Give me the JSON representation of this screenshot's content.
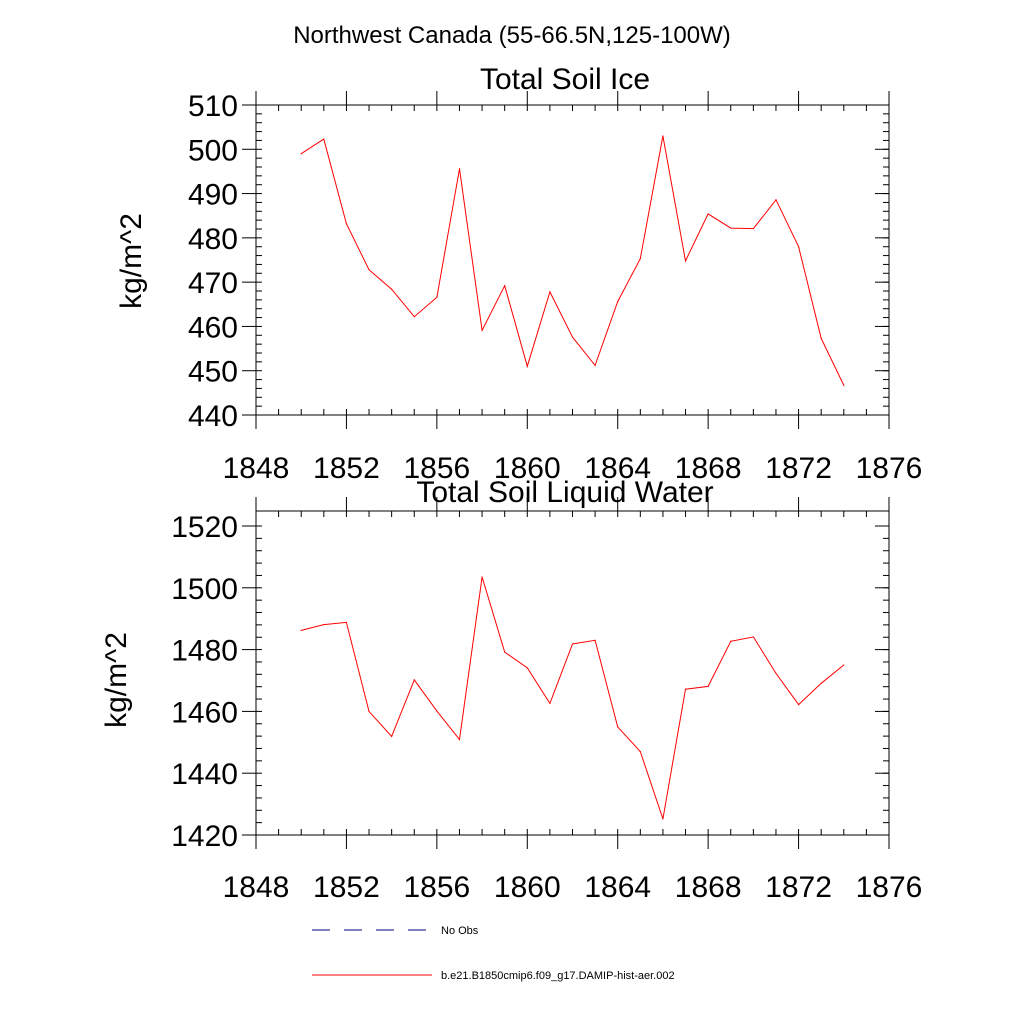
{
  "figure": {
    "title": "Northwest Canada (55-66.5N,125-100W)"
  },
  "chart_data": [
    {
      "type": "line",
      "title": "Total Soil Ice",
      "xlabel": "",
      "ylabel": "kg/m^2",
      "xlim": [
        1848,
        1876
      ],
      "ylim": [
        440,
        510
      ],
      "x_ticks": [
        "1848",
        "1852",
        "1856",
        "1860",
        "1864",
        "1868",
        "1872",
        "1876"
      ],
      "y_ticks": [
        "440",
        "450",
        "460",
        "470",
        "480",
        "490",
        "500",
        "510"
      ],
      "x_minor_step": 1,
      "y_minor_step": 2,
      "grid": false,
      "series": [
        {
          "name": "b.e21.B1850cmip6.f09_g17.DAMIP-hist-aer.002",
          "color": "#ff0000",
          "x": [
            1850,
            1851,
            1852,
            1853,
            1854,
            1855,
            1856,
            1857,
            1858,
            1859,
            1860,
            1861,
            1862,
            1863,
            1864,
            1865,
            1866,
            1867,
            1868,
            1869,
            1870,
            1871,
            1872,
            1873,
            1874
          ],
          "values": [
            499.0,
            502.3,
            483.2,
            472.8,
            468.4,
            462.2,
            466.6,
            495.6,
            459.1,
            469.2,
            451.0,
            467.8,
            457.6,
            451.2,
            465.6,
            475.3,
            503.0,
            474.8,
            485.4,
            482.2,
            482.1,
            488.6,
            478.0,
            457.3,
            446.7
          ]
        }
      ]
    },
    {
      "type": "line",
      "title": "Total Soil Liquid Water",
      "xlabel": "",
      "ylabel": "kg/m^2",
      "xlim": [
        1848,
        1876
      ],
      "ylim": [
        1420,
        1525
      ],
      "x_ticks": [
        "1848",
        "1852",
        "1856",
        "1860",
        "1864",
        "1868",
        "1872",
        "1876"
      ],
      "y_ticks": [
        "1420",
        "1440",
        "1460",
        "1480",
        "1500",
        "1520"
      ],
      "x_minor_step": 1,
      "y_minor_step": 4,
      "grid": false,
      "series": [
        {
          "name": "b.e21.B1850cmip6.f09_g17.DAMIP-hist-aer.002",
          "color": "#ff0000",
          "x": [
            1850,
            1851,
            1852,
            1853,
            1854,
            1855,
            1856,
            1857,
            1858,
            1859,
            1860,
            1861,
            1862,
            1863,
            1864,
            1865,
            1866,
            1867,
            1868,
            1869,
            1870,
            1871,
            1872,
            1873,
            1874
          ],
          "values": [
            1486.2,
            1488.1,
            1488.8,
            1460.0,
            1451.9,
            1470.2,
            1460.1,
            1450.9,
            1503.5,
            1479.2,
            1474.1,
            1462.6,
            1481.8,
            1483.0,
            1455.0,
            1447.0,
            1425.2,
            1467.2,
            1468.1,
            1482.7,
            1484.1,
            1472.3,
            1462.2,
            1469.1,
            1475.0
          ]
        }
      ]
    }
  ],
  "legend": {
    "placement": "bottom",
    "entries": [
      {
        "label": "No Obs",
        "color": "#000080",
        "style": "dashed"
      },
      {
        "label": "b.e21.B1850cmip6.f09_g17.DAMIP-hist-aer.002",
        "color": "#ff0000",
        "style": "solid"
      }
    ]
  }
}
